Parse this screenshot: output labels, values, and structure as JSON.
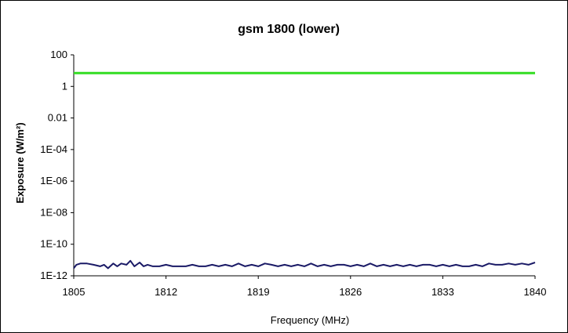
{
  "chart_data": {
    "type": "line",
    "title": "gsm 1800 (lower)",
    "xlabel": "Frequency (MHz)",
    "ylabel": "Exposure (W/m²)",
    "y_scale": "log",
    "xlim": [
      1805,
      1840
    ],
    "ylim": [
      1e-12,
      100
    ],
    "x_ticks": [
      1805,
      1812,
      1819,
      1826,
      1833,
      1840
    ],
    "x_tick_labels": [
      "1805",
      "1812",
      "1819",
      "1826",
      "1833",
      "1840"
    ],
    "y_ticks": [
      1e-12,
      1e-10,
      1e-08,
      1e-06,
      0.0001,
      0.01,
      1,
      100
    ],
    "y_tick_labels": [
      "1E-12",
      "1E-10",
      "1E-08",
      "1E-06",
      "1E-04",
      "0.01",
      "1",
      "100"
    ],
    "grid": false,
    "legend": "none",
    "series": [
      {
        "color": "#33dd22",
        "x": [
          1805,
          1840
        ],
        "y": [
          7,
          7
        ]
      },
      {
        "color": "#1a1a66",
        "x": [
          1805,
          1805.2,
          1805.5,
          1806,
          1806.5,
          1807,
          1807.3,
          1807.6,
          1808,
          1808.3,
          1808.6,
          1809,
          1809.3,
          1809.6,
          1810,
          1810.3,
          1810.6,
          1811,
          1811.5,
          1812,
          1812.5,
          1813,
          1813.5,
          1814,
          1814.5,
          1815,
          1815.5,
          1816,
          1816.5,
          1817,
          1817.5,
          1818,
          1818.5,
          1819,
          1819.5,
          1820,
          1820.5,
          1821,
          1821.5,
          1822,
          1822.5,
          1823,
          1823.5,
          1824,
          1824.5,
          1825,
          1825.5,
          1826,
          1826.5,
          1827,
          1827.5,
          1828,
          1828.5,
          1829,
          1829.5,
          1830,
          1830.5,
          1831,
          1831.5,
          1832,
          1832.5,
          1833,
          1833.5,
          1834,
          1834.5,
          1835,
          1835.5,
          1836,
          1836.5,
          1837,
          1837.5,
          1838,
          1838.5,
          1839,
          1839.5,
          1840
        ],
        "y": [
          3e-12,
          5e-12,
          6e-12,
          6e-12,
          5e-12,
          4e-12,
          5e-12,
          3e-12,
          6e-12,
          4e-12,
          6e-12,
          5e-12,
          9e-12,
          4e-12,
          7e-12,
          4e-12,
          5e-12,
          4e-12,
          4e-12,
          5e-12,
          4e-12,
          4e-12,
          4e-12,
          5e-12,
          4e-12,
          4e-12,
          5e-12,
          4e-12,
          5e-12,
          4e-12,
          6e-12,
          4e-12,
          5e-12,
          4e-12,
          6e-12,
          5e-12,
          4e-12,
          5e-12,
          4e-12,
          5e-12,
          4e-12,
          6e-12,
          4e-12,
          5e-12,
          4e-12,
          5e-12,
          5e-12,
          4e-12,
          5e-12,
          4e-12,
          6e-12,
          4e-12,
          5e-12,
          4e-12,
          5e-12,
          4e-12,
          5e-12,
          4e-12,
          5e-12,
          5e-12,
          4e-12,
          5e-12,
          4e-12,
          5e-12,
          4e-12,
          4e-12,
          5e-12,
          4e-12,
          6e-12,
          5e-12,
          5e-12,
          6e-12,
          5e-12,
          6e-12,
          5e-12,
          7e-12
        ]
      }
    ]
  }
}
